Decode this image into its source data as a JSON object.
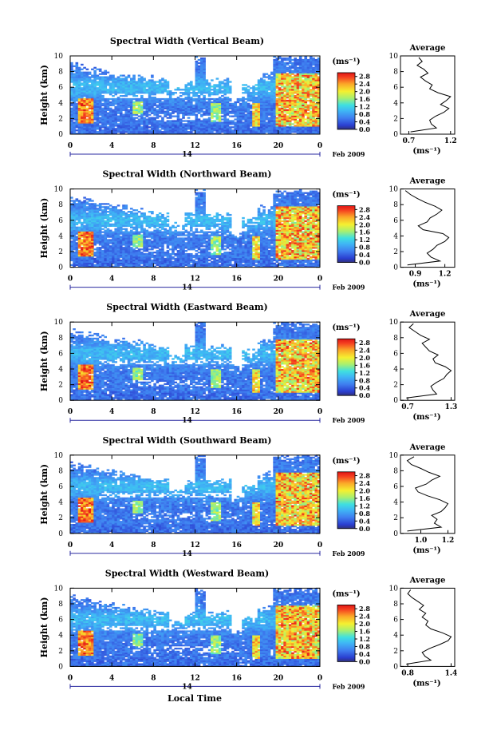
{
  "figure": {
    "x_axis_title": "Local Time",
    "date_day": "14",
    "date_label": "Feb 2009",
    "colorbar_unit": "(ms⁻¹)",
    "avg_title": "Average",
    "avg_unit": "(ms⁻¹)",
    "y_axis_title": "Height (km)"
  },
  "chart_data": [
    {
      "type": "heatmap",
      "title": "Spectral Width (Vertical Beam)",
      "xlabel": "Local Time",
      "ylabel": "Height (km)",
      "x_ticks": [
        "0",
        "4",
        "8",
        "12",
        "16",
        "20",
        "0"
      ],
      "y_ticks": [
        "0",
        "2",
        "4",
        "6",
        "8",
        "10"
      ],
      "xlim": [
        0,
        24
      ],
      "ylim": [
        0,
        10
      ],
      "colorbar_ticks": [
        "0.0",
        "0.4",
        "0.8",
        "1.2",
        "1.6",
        "2.0",
        "2.4",
        "2.8"
      ],
      "colorbar_range": [
        0,
        3.0
      ],
      "profile": {
        "title": "Average",
        "xlabel": "(ms⁻¹)",
        "x_ticks": [
          "0.7",
          "1.2"
        ],
        "xlim": [
          0.6,
          1.25
        ],
        "y_ticks": [
          "0",
          "2",
          "4",
          "6",
          "8",
          "10"
        ],
        "height_km": [
          0.3,
          0.8,
          1.3,
          1.8,
          2.3,
          2.8,
          3.3,
          3.8,
          4.3,
          4.8,
          5.3,
          5.8,
          6.3,
          6.8,
          7.3,
          7.8,
          8.3,
          8.8,
          9.3,
          9.8
        ],
        "width": [
          0.72,
          1.03,
          0.97,
          0.95,
          1.02,
          1.12,
          1.18,
          1.08,
          1.15,
          1.2,
          1.05,
          0.95,
          0.98,
          0.9,
          0.84,
          0.93,
          0.88,
          0.8,
          0.86,
          0.82
        ]
      }
    },
    {
      "type": "heatmap",
      "title": "Spectral Width (Northward Beam)",
      "xlabel": "Local Time",
      "ylabel": "Height (km)",
      "x_ticks": [
        "0",
        "4",
        "8",
        "12",
        "16",
        "20",
        "0"
      ],
      "y_ticks": [
        "0",
        "2",
        "4",
        "6",
        "8",
        "10"
      ],
      "xlim": [
        0,
        24
      ],
      "ylim": [
        0,
        10
      ],
      "colorbar_ticks": [
        "0.0",
        "0.4",
        "0.8",
        "1.2",
        "1.6",
        "2.0",
        "2.4",
        "2.8"
      ],
      "colorbar_range": [
        0,
        3.0
      ],
      "profile": {
        "title": "Average",
        "xlabel": "(ms⁻¹)",
        "x_ticks": [
          "0.9",
          "1.2"
        ],
        "xlim": [
          0.75,
          1.3
        ],
        "y_ticks": [
          "0",
          "2",
          "4",
          "6",
          "8",
          "10"
        ],
        "height_km": [
          0.3,
          0.8,
          1.3,
          1.8,
          2.3,
          2.8,
          3.3,
          3.8,
          4.3,
          4.8,
          5.3,
          5.8,
          6.3,
          6.8,
          7.3,
          7.8,
          8.3,
          8.8,
          9.3,
          9.8
        ],
        "width": [
          0.82,
          1.15,
          1.06,
          1.02,
          1.08,
          1.12,
          1.2,
          1.24,
          1.18,
          0.98,
          0.93,
          1.02,
          1.05,
          1.12,
          1.17,
          1.1,
          1.0,
          0.92,
          0.85,
          0.8
        ]
      }
    },
    {
      "type": "heatmap",
      "title": "Spectral Width (Eastward Beam)",
      "xlabel": "Local Time",
      "ylabel": "Height (km)",
      "x_ticks": [
        "0",
        "4",
        "8",
        "12",
        "16",
        "20",
        "0"
      ],
      "y_ticks": [
        "0",
        "2",
        "4",
        "6",
        "8",
        "10"
      ],
      "xlim": [
        0,
        24
      ],
      "ylim": [
        0,
        10
      ],
      "colorbar_ticks": [
        "0.0",
        "0.4",
        "0.8",
        "1.2",
        "1.6",
        "2.0",
        "2.4",
        "2.8"
      ],
      "colorbar_range": [
        0,
        3.0
      ],
      "profile": {
        "title": "Average",
        "xlabel": "(ms⁻¹)",
        "x_ticks": [
          "0.7",
          "1.3"
        ],
        "xlim": [
          0.6,
          1.35
        ],
        "y_ticks": [
          "0",
          "2",
          "4",
          "6",
          "8",
          "10"
        ],
        "height_km": [
          0.3,
          0.8,
          1.3,
          1.8,
          2.3,
          2.8,
          3.3,
          3.8,
          4.3,
          4.8,
          5.3,
          5.8,
          6.3,
          6.8,
          7.3,
          7.8,
          8.3,
          8.8,
          9.3,
          9.8
        ],
        "width": [
          0.68,
          1.1,
          1.05,
          1.02,
          1.1,
          1.2,
          1.24,
          1.3,
          1.22,
          1.08,
          1.05,
          1.12,
          1.0,
          0.95,
          0.9,
          1.0,
          0.88,
          0.8,
          0.72,
          0.78
        ]
      }
    },
    {
      "type": "heatmap",
      "title": "Spectral Width (Southward Beam)",
      "xlabel": "Local Time",
      "ylabel": "Height (km)",
      "x_ticks": [
        "0",
        "4",
        "8",
        "12",
        "16",
        "20",
        "0"
      ],
      "y_ticks": [
        "0",
        "2",
        "4",
        "6",
        "8",
        "10"
      ],
      "xlim": [
        0,
        24
      ],
      "ylim": [
        0,
        10
      ],
      "colorbar_ticks": [
        "0.0",
        "0.4",
        "0.8",
        "1.2",
        "1.6",
        "2.0",
        "2.4",
        "2.8"
      ],
      "colorbar_range": [
        0,
        3.0
      ],
      "profile": {
        "title": "Average",
        "xlabel": "(ms⁻¹)",
        "x_ticks": [
          "1.0",
          "1.2"
        ],
        "xlim": [
          0.85,
          1.25
        ],
        "y_ticks": [
          "0",
          "2",
          "4",
          "6",
          "8",
          "10"
        ],
        "height_km": [
          0.3,
          0.8,
          1.3,
          1.8,
          2.3,
          2.8,
          3.3,
          3.8,
          4.3,
          4.8,
          5.3,
          5.8,
          6.3,
          6.8,
          7.3,
          7.8,
          8.3,
          8.8,
          9.3,
          9.8
        ],
        "width": [
          0.9,
          1.15,
          1.1,
          1.12,
          1.08,
          1.15,
          1.18,
          1.2,
          1.14,
          1.05,
          0.98,
          0.96,
          1.04,
          1.08,
          1.14,
          1.06,
          1.0,
          0.93,
          0.9,
          0.95
        ]
      }
    },
    {
      "type": "heatmap",
      "title": "Spectral Width (Westward Beam)",
      "xlabel": "Local Time",
      "ylabel": "Height (km)",
      "x_ticks": [
        "0",
        "4",
        "8",
        "12",
        "16",
        "20",
        "0"
      ],
      "y_ticks": [
        "0",
        "2",
        "4",
        "6",
        "8",
        "10"
      ],
      "xlim": [
        0,
        24
      ],
      "ylim": [
        0,
        10
      ],
      "colorbar_ticks": [
        "0.0",
        "0.4",
        "0.8",
        "1.2",
        "1.6",
        "2.0",
        "2.4",
        "2.8"
      ],
      "colorbar_range": [
        0,
        3.0
      ],
      "profile": {
        "title": "Average",
        "xlabel": "(ms⁻¹)",
        "x_ticks": [
          "0.8",
          "1.4"
        ],
        "xlim": [
          0.7,
          1.45
        ],
        "y_ticks": [
          "0",
          "2",
          "4",
          "6",
          "8",
          "10"
        ],
        "height_km": [
          0.3,
          0.8,
          1.3,
          1.8,
          2.3,
          2.8,
          3.3,
          3.8,
          4.3,
          4.8,
          5.3,
          5.8,
          6.3,
          6.8,
          7.3,
          7.8,
          8.3,
          8.8,
          9.3,
          9.8
        ],
        "width": [
          0.78,
          1.12,
          1.04,
          1.0,
          1.1,
          1.24,
          1.36,
          1.4,
          1.28,
          1.12,
          1.05,
          1.08,
          1.0,
          1.05,
          0.96,
          1.02,
          0.94,
          0.86,
          0.8,
          0.84
        ]
      }
    }
  ]
}
